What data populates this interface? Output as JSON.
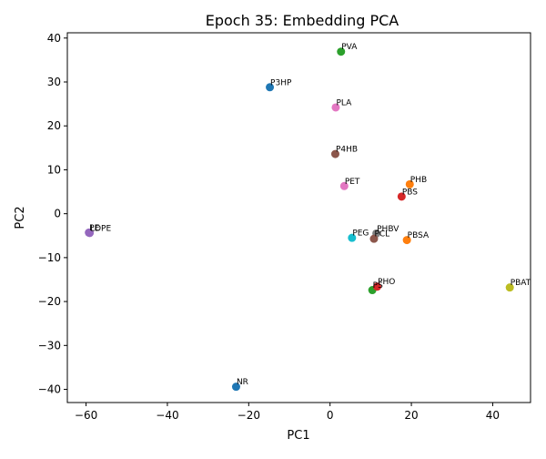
{
  "chart_data": {
    "type": "scatter",
    "title": "Epoch 35: Embedding PCA",
    "xlabel": "PC1",
    "ylabel": "PC2",
    "xlim": [
      -64.6,
      49.3
    ],
    "ylim": [
      -43.0,
      41.2
    ],
    "xticks": [
      -60,
      -40,
      -20,
      0,
      20,
      40
    ],
    "yticks": [
      -40,
      -30,
      -20,
      -10,
      0,
      10,
      20,
      30,
      40
    ],
    "grid": false,
    "legend": "none",
    "points": [
      {
        "label": "P3HP",
        "x": -14.8,
        "y": 28.8,
        "color": "#1f77b4"
      },
      {
        "label": "PHB",
        "x": 19.6,
        "y": 6.7,
        "color": "#ff7f0e"
      },
      {
        "label": "PVA",
        "x": 2.7,
        "y": 36.9,
        "color": "#2ca02c"
      },
      {
        "label": "PBS",
        "x": 17.6,
        "y": 3.9,
        "color": "#d62728"
      },
      {
        "label": "PE",
        "x": -59.3,
        "y": -4.3,
        "color": "#9467bd"
      },
      {
        "label": "P4HB",
        "x": 1.3,
        "y": 13.6,
        "color": "#8c564b"
      },
      {
        "label": "PLA",
        "x": 1.4,
        "y": 24.2,
        "color": "#e377c2"
      },
      {
        "label": "PHBV",
        "x": 11.4,
        "y": -4.5,
        "color": "#7f7f7f"
      },
      {
        "label": "PBAT",
        "x": 44.2,
        "y": -16.8,
        "color": "#bcbd22"
      },
      {
        "label": "PEG",
        "x": 5.4,
        "y": -5.5,
        "color": "#17becf"
      },
      {
        "label": "NR",
        "x": -23.1,
        "y": -39.4,
        "color": "#1f77b4"
      },
      {
        "label": "PBSA",
        "x": 18.9,
        "y": -6.0,
        "color": "#ff7f0e"
      },
      {
        "label": "PS",
        "x": 10.4,
        "y": -17.4,
        "color": "#2ca02c"
      },
      {
        "label": "PHO",
        "x": 11.6,
        "y": -16.6,
        "color": "#d62728"
      },
      {
        "label": "LDPE",
        "x": -59.1,
        "y": -4.4,
        "color": "#9467bd"
      },
      {
        "label": "PCL",
        "x": 10.8,
        "y": -5.7,
        "color": "#8c564b"
      },
      {
        "label": "PET",
        "x": 3.5,
        "y": 6.3,
        "color": "#e377c2"
      }
    ]
  }
}
